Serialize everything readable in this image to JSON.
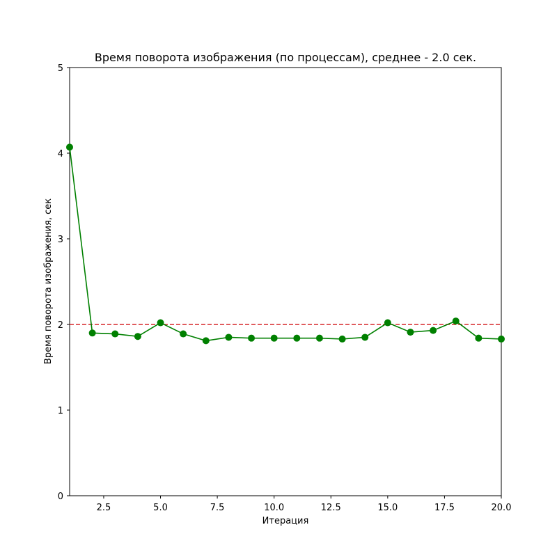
{
  "chart_data": {
    "type": "line",
    "title": "Время поворота изображения (по процессам), среднее - 2.0 сек.",
    "xlabel": "Итерация",
    "ylabel": "Время поворота изображения, сек",
    "xlim": [
      1,
      20
    ],
    "ylim": [
      0,
      5
    ],
    "x_ticks": [
      2.5,
      5.0,
      7.5,
      10.0,
      12.5,
      15.0,
      17.5,
      20.0
    ],
    "x_tick_labels": [
      "2.5",
      "5.0",
      "7.5",
      "10.0",
      "12.5",
      "15.0",
      "17.5",
      "20.0"
    ],
    "y_ticks": [
      0,
      1,
      2,
      3,
      4,
      5
    ],
    "y_tick_labels": [
      "0",
      "1",
      "2",
      "3",
      "4",
      "5"
    ],
    "grid": false,
    "series": [
      {
        "color": "#008000",
        "marker": "circle",
        "x": [
          1,
          2,
          3,
          4,
          5,
          6,
          7,
          8,
          9,
          10,
          11,
          12,
          13,
          14,
          15,
          16,
          17,
          18,
          19,
          20
        ],
        "values": [
          4.07,
          1.9,
          1.89,
          1.86,
          2.02,
          1.89,
          1.81,
          1.85,
          1.84,
          1.84,
          1.84,
          1.84,
          1.83,
          1.85,
          2.02,
          1.91,
          1.93,
          2.04,
          1.84,
          1.83
        ]
      }
    ],
    "reference_line": {
      "y": 2.0,
      "color": "#d62728",
      "style": "dashed"
    }
  }
}
